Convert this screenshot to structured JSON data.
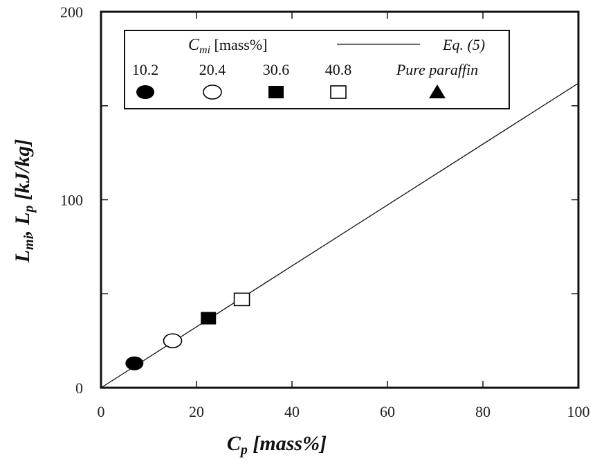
{
  "chart_data": {
    "type": "scatter",
    "xlabel": {
      "main": "C",
      "sub": "p",
      "rest": " [mass%]"
    },
    "ylabel": {
      "a_main": "L",
      "a_sub": "mi",
      "sep": ", ",
      "b_main": "L",
      "b_sub": "p",
      "rest": " [kJ/kg]"
    },
    "xlim": [
      0,
      100
    ],
    "ylim": [
      0,
      200
    ],
    "x_ticks": [
      0,
      20,
      40,
      60,
      80,
      100
    ],
    "y_ticks": [
      0,
      100,
      200
    ],
    "y_minor_ticks": [
      50,
      150
    ],
    "grid": false,
    "legend": {
      "placement": "top-left",
      "header": {
        "main": "C",
        "sub": "mi",
        "rest": " [mass%]"
      },
      "line_label": "Eq. (5)",
      "entries": [
        {
          "label": "10.2",
          "marker": "filled-circle"
        },
        {
          "label": "20.4",
          "marker": "open-circle"
        },
        {
          "label": "30.6",
          "marker": "filled-square"
        },
        {
          "label": "40.8",
          "marker": "open-square"
        },
        {
          "label": "Pure paraffin",
          "marker": "filled-triangle"
        }
      ]
    },
    "series": [
      {
        "name": "10.2",
        "marker": "filled-circle",
        "points": [
          {
            "x": 7,
            "y": 13
          }
        ]
      },
      {
        "name": "20.4",
        "marker": "open-circle",
        "points": [
          {
            "x": 15,
            "y": 25
          }
        ]
      },
      {
        "name": "30.6",
        "marker": "filled-square",
        "points": [
          {
            "x": 22.5,
            "y": 37
          }
        ]
      },
      {
        "name": "40.8",
        "marker": "open-square",
        "points": [
          {
            "x": 29.5,
            "y": 47
          }
        ]
      }
    ],
    "fit_line": {
      "name": "Eq. (5)",
      "x": [
        0,
        100
      ],
      "y": [
        0,
        162
      ]
    }
  }
}
